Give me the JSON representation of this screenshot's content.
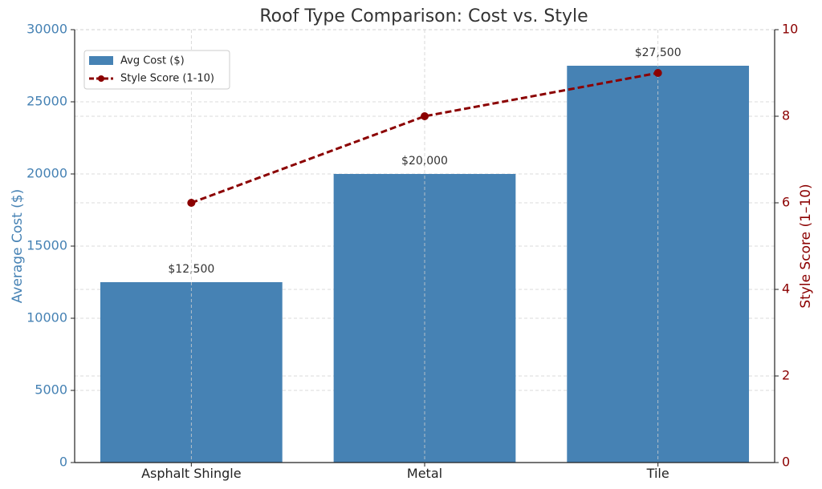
{
  "chart_data": {
    "type": "bar",
    "title": "Roof Type Comparison: Cost vs. Style",
    "categories": [
      "Asphalt Shingle",
      "Metal",
      "Tile"
    ],
    "series": [
      {
        "name": "Avg Cost ($)",
        "kind": "bar",
        "axis": "left",
        "values": [
          12500,
          20000,
          27500
        ],
        "value_labels": [
          "$12,500",
          "$20,000",
          "$27,500"
        ],
        "color": "#4682b4"
      },
      {
        "name": "Style Score (1-10)",
        "kind": "line",
        "axis": "right",
        "values": [
          6,
          8,
          9
        ],
        "color": "#8b0000",
        "line_style": "dashed",
        "marker": "circle"
      }
    ],
    "ylabel_left": "Average Cost ($)",
    "ylabel_right": "Style Score (1–10)",
    "ylim_left": [
      0,
      30000
    ],
    "ylim_right": [
      0,
      10
    ],
    "yticks_left": [
      0,
      5000,
      10000,
      15000,
      20000,
      25000,
      30000
    ],
    "yticks_right": [
      0,
      2,
      4,
      6,
      8,
      10
    ],
    "grid": true,
    "legend_position": "top-left",
    "colors": {
      "left_axis": "#4682b4",
      "right_axis": "#8b0000",
      "text": "#333333"
    }
  }
}
